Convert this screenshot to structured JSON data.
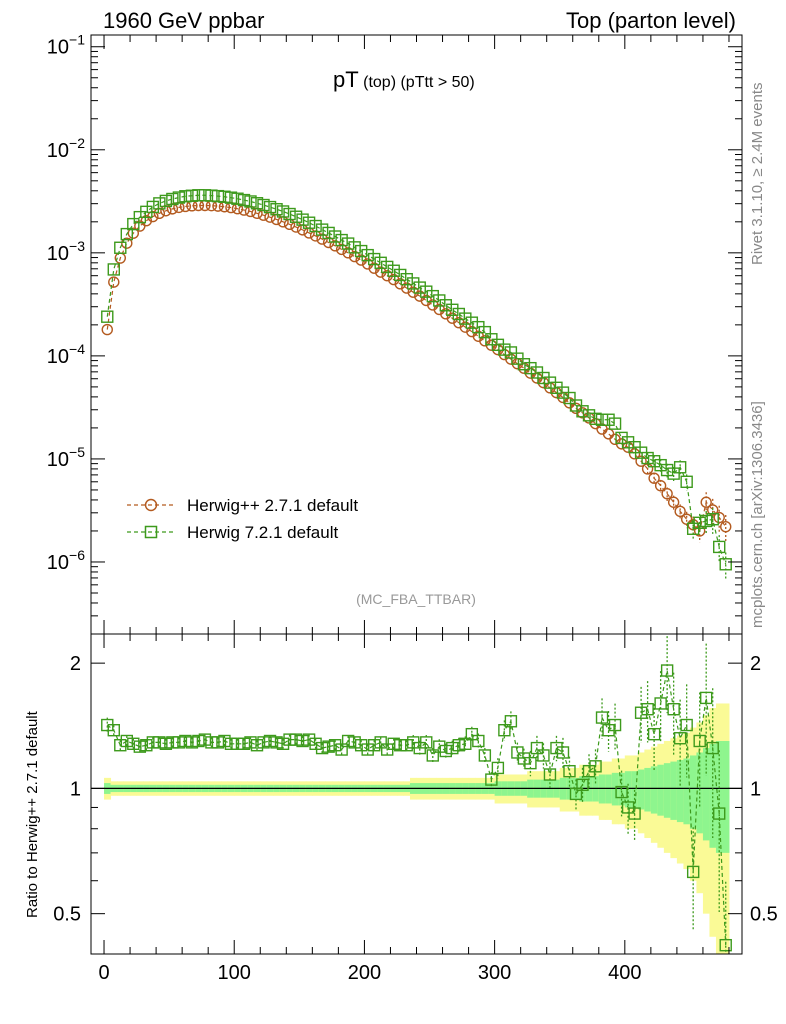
{
  "header": {
    "left": "1960 GeV ppbar",
    "right": "Top (parton level)"
  },
  "side_labels": {
    "rivet": "Rivet 3.1.10, ≥ 2.4M events",
    "mcplots": "mcplots.cern.ch [arXiv:1306.3436]"
  },
  "plot_title": {
    "main": "pT",
    "sub": " (top) (pTtt > 50)"
  },
  "analysis_tag": "(MC_FBA_TTBAR)",
  "ratio_ylabel": "Ratio to Herwig++ 2.7.1 default",
  "colors": {
    "series1": "#b35a1f",
    "series2": "#3d9a1c",
    "band_inner": "#8ef58e",
    "band_outer": "#fafa96"
  },
  "chart_data": [
    {
      "type": "scatter",
      "yscale": "log",
      "xlim": [
        -10,
        490
      ],
      "ylim": [
        2e-07,
        0.13
      ],
      "x_ticks": [
        "0",
        "100",
        "200",
        "300",
        "400"
      ],
      "y_ticks": [
        "10^-6",
        "10^-5",
        "10^-4",
        "10^-3",
        "10^-2",
        "10^-1"
      ],
      "legend_position": "lower-left",
      "x": [
        2.5,
        7.5,
        12.5,
        17.5,
        22.5,
        27.5,
        32.5,
        37.5,
        42.5,
        47.5,
        52.5,
        57.5,
        62.5,
        67.5,
        72.5,
        77.5,
        82.5,
        87.5,
        92.5,
        97.5,
        102.5,
        107.5,
        112.5,
        117.5,
        122.5,
        127.5,
        132.5,
        137.5,
        142.5,
        147.5,
        152.5,
        157.5,
        162.5,
        167.5,
        172.5,
        177.5,
        182.5,
        187.5,
        192.5,
        197.5,
        202.5,
        207.5,
        212.5,
        217.5,
        222.5,
        227.5,
        232.5,
        237.5,
        242.5,
        247.5,
        252.5,
        257.5,
        262.5,
        267.5,
        272.5,
        277.5,
        282.5,
        287.5,
        292.5,
        297.5,
        302.5,
        307.5,
        312.5,
        317.5,
        322.5,
        327.5,
        332.5,
        337.5,
        342.5,
        347.5,
        352.5,
        357.5,
        362.5,
        367.5,
        372.5,
        377.5,
        382.5,
        387.5,
        392.5,
        397.5,
        402.5,
        407.5,
        412.5,
        417.5,
        422.5,
        427.5,
        432.5,
        437.5,
        442.5,
        447.5,
        452.5,
        457.5,
        462.5,
        467.5,
        472.5,
        477.5
      ],
      "series": [
        {
          "name": "Herwig++ 2.7.1 default",
          "marker": "circle",
          "values": [
            0.00018,
            0.00052,
            0.00089,
            0.00124,
            0.00155,
            0.00182,
            0.00205,
            0.00225,
            0.00242,
            0.00256,
            0.00267,
            0.00276,
            0.00282,
            0.00286,
            0.00288,
            0.00288,
            0.00287,
            0.00284,
            0.0028,
            0.00275,
            0.00268,
            0.0026,
            0.00252,
            0.00242,
            0.00232,
            0.00222,
            0.00211,
            0.002,
            0.00189,
            0.00178,
            0.00167,
            0.00156,
            0.00146,
            0.00136,
            0.00126,
            0.00117,
            0.00108,
            0.001,
            0.00092,
            0.00085,
            0.00078,
            0.00071,
            0.00065,
            0.0006,
            0.00055,
            0.0005,
            0.000455,
            0.000415,
            0.00038,
            0.000345,
            0.000312,
            0.000282,
            0.000256,
            0.000232,
            0.00021,
            0.00019,
            0.000172,
            0.000155,
            0.00014,
            0.000127,
            0.000115,
            0.000103,
            9.3e-05,
            8.4e-05,
            7.6e-05,
            6.8e-05,
            6.1e-05,
            5.5e-05,
            4.9e-05,
            4.4e-05,
            3.95e-05,
            3.5e-05,
            3.1e-05,
            2.8e-05,
            2.5e-05,
            2.2e-05,
            1.95e-05,
            1.75e-05,
            1.55e-05,
            1.4e-05,
            1.3e-05,
            1.12e-05,
            9.5e-06,
            8e-06,
            6.5e-06,
            5.5e-06,
            4.6e-06,
            3.8e-06,
            3.1e-06,
            2.6e-06,
            2.3e-06,
            2e-06,
            3.8e-06,
            3.2e-06,
            2.7e-06,
            2.2e-06
          ],
          "errors": [
            0.03,
            0.02,
            0.02,
            0.02,
            0.02,
            0.02,
            0.02,
            0.02,
            0.02,
            0.02,
            0.02,
            0.02,
            0.02,
            0.02,
            0.02,
            0.02,
            0.02,
            0.02,
            0.02,
            0.02,
            0.02,
            0.02,
            0.02,
            0.02,
            0.02,
            0.02,
            0.02,
            0.02,
            0.02,
            0.02,
            0.02,
            0.02,
            0.02,
            0.02,
            0.02,
            0.02,
            0.02,
            0.02,
            0.02,
            0.02,
            0.02,
            0.02,
            0.02,
            0.02,
            0.02,
            0.02,
            0.02,
            0.03,
            0.03,
            0.03,
            0.03,
            0.03,
            0.03,
            0.03,
            0.03,
            0.03,
            0.03,
            0.03,
            0.03,
            0.03,
            0.04,
            0.04,
            0.04,
            0.04,
            0.04,
            0.05,
            0.05,
            0.05,
            0.05,
            0.05,
            0.06,
            0.06,
            0.06,
            0.07,
            0.07,
            0.07,
            0.08,
            0.08,
            0.09,
            0.09,
            0.1,
            0.1,
            0.11,
            0.12,
            0.13,
            0.14,
            0.15,
            0.16,
            0.17,
            0.18,
            0.2,
            0.22,
            0.25,
            0.28,
            0.3,
            0.3
          ]
        },
        {
          "name": "Herwig 7.2.1 default",
          "marker": "square",
          "values": [
            0.00024,
            0.00069,
            0.00112,
            0.00152,
            0.0019,
            0.00222,
            0.0025,
            0.00279,
            0.00302,
            0.00319,
            0.00333,
            0.00344,
            0.00354,
            0.00358,
            0.00362,
            0.00362,
            0.00359,
            0.00355,
            0.0035,
            0.00343,
            0.00335,
            0.00325,
            0.00315,
            0.00303,
            0.00291,
            0.00278,
            0.00265,
            0.00252,
            0.00238,
            0.00224,
            0.0021,
            0.00196,
            0.00182,
            0.00168,
            0.00156,
            0.00144,
            0.00133,
            0.00123,
            0.00113,
            0.00104,
            0.00095,
            0.00087,
            0.0008,
            0.00073,
            0.00067,
            0.00061,
            0.000555,
            0.000505,
            0.00046,
            0.00042,
            0.00038,
            0.000345,
            0.00031,
            0.00028,
            0.000255,
            0.00023,
            0.00021,
            0.00019,
            0.00017,
            0.000145,
            0.000128,
            0.000115,
            0.000108,
            9.4e-05,
            8.3e-05,
            7.6e-05,
            6.9e-05,
            6.1e-05,
            5.5e-05,
            4.9e-05,
            4.4e-05,
            3.9e-05,
            3.3e-05,
            2.9e-05,
            2.65e-05,
            2.45e-05,
            2.4e-05,
            2.4e-05,
            2.2e-05,
            1.6e-05,
            1.45e-05,
            1.3e-05,
            1.15e-05,
            1.02e-05,
            9.5e-06,
            8.7e-06,
            7.8e-06,
            7.2e-06,
            8.3e-06,
            6e-06,
            2.1e-06,
            2.4e-06,
            2.5e-06,
            2.6e-06,
            1.4e-06,
            9.5e-07
          ],
          "errors": [
            0.03,
            0.02,
            0.02,
            0.02,
            0.02,
            0.02,
            0.02,
            0.02,
            0.02,
            0.02,
            0.02,
            0.02,
            0.02,
            0.02,
            0.02,
            0.02,
            0.02,
            0.02,
            0.02,
            0.02,
            0.02,
            0.02,
            0.02,
            0.02,
            0.02,
            0.02,
            0.02,
            0.02,
            0.02,
            0.02,
            0.02,
            0.02,
            0.02,
            0.02,
            0.02,
            0.02,
            0.02,
            0.02,
            0.02,
            0.02,
            0.02,
            0.02,
            0.02,
            0.02,
            0.02,
            0.02,
            0.02,
            0.03,
            0.03,
            0.03,
            0.03,
            0.03,
            0.03,
            0.03,
            0.03,
            0.03,
            0.03,
            0.03,
            0.03,
            0.03,
            0.04,
            0.04,
            0.04,
            0.04,
            0.04,
            0.05,
            0.05,
            0.05,
            0.05,
            0.05,
            0.06,
            0.06,
            0.06,
            0.07,
            0.07,
            0.07,
            0.08,
            0.08,
            0.09,
            0.09,
            0.1,
            0.1,
            0.11,
            0.12,
            0.13,
            0.14,
            0.15,
            0.16,
            0.17,
            0.18,
            0.2,
            0.22,
            0.25,
            0.28,
            0.3,
            0.3
          ]
        }
      ]
    },
    {
      "type": "scatter",
      "yscale": "log",
      "xlim": [
        -10,
        490
      ],
      "ylim": [
        0.4,
        2.35
      ],
      "ylabel": "Ratio to Herwig++ 2.7.1 default",
      "x_ticks": [
        "0",
        "100",
        "200",
        "300",
        "400"
      ],
      "y_ticks": [
        "0.5",
        "1",
        "2"
      ],
      "reference_line": 1,
      "x": [
        2.5,
        7.5,
        12.5,
        17.5,
        22.5,
        27.5,
        32.5,
        37.5,
        42.5,
        47.5,
        52.5,
        57.5,
        62.5,
        67.5,
        72.5,
        77.5,
        82.5,
        87.5,
        92.5,
        97.5,
        102.5,
        107.5,
        112.5,
        117.5,
        122.5,
        127.5,
        132.5,
        137.5,
        142.5,
        147.5,
        152.5,
        157.5,
        162.5,
        167.5,
        172.5,
        177.5,
        182.5,
        187.5,
        192.5,
        197.5,
        202.5,
        207.5,
        212.5,
        217.5,
        222.5,
        227.5,
        232.5,
        237.5,
        242.5,
        247.5,
        252.5,
        257.5,
        262.5,
        267.5,
        272.5,
        277.5,
        282.5,
        287.5,
        292.5,
        297.5,
        302.5,
        307.5,
        312.5,
        317.5,
        322.5,
        327.5,
        332.5,
        337.5,
        342.5,
        347.5,
        352.5,
        357.5,
        362.5,
        367.5,
        372.5,
        377.5,
        382.5,
        387.5,
        392.5,
        397.5,
        402.5,
        407.5,
        412.5,
        417.5,
        422.5,
        427.5,
        432.5,
        437.5,
        442.5,
        447.5,
        452.5,
        457.5,
        462.5,
        467.5,
        472.5,
        477.5
      ],
      "values": [
        1.42,
        1.38,
        1.27,
        1.3,
        1.28,
        1.26,
        1.27,
        1.29,
        1.29,
        1.28,
        1.29,
        1.29,
        1.3,
        1.29,
        1.3,
        1.31,
        1.29,
        1.29,
        1.3,
        1.28,
        1.28,
        1.28,
        1.29,
        1.27,
        1.29,
        1.3,
        1.29,
        1.28,
        1.31,
        1.31,
        1.3,
        1.31,
        1.28,
        1.25,
        1.26,
        1.27,
        1.24,
        1.3,
        1.29,
        1.27,
        1.24,
        1.27,
        1.29,
        1.24,
        1.28,
        1.27,
        1.27,
        1.29,
        1.25,
        1.29,
        1.2,
        1.26,
        1.23,
        1.25,
        1.27,
        1.28,
        1.35,
        1.3,
        1.2,
        1.05,
        1.12,
        1.38,
        1.45,
        1.22,
        1.18,
        1.15,
        1.25,
        1.2,
        1.08,
        1.25,
        1.22,
        1.1,
        0.97,
        1.02,
        1.1,
        1.13,
        1.48,
        1.38,
        1.42,
        0.98,
        0.9,
        0.87,
        1.52,
        1.55,
        1.35,
        1.6,
        1.92,
        1.55,
        1.32,
        1.42,
        0.63,
        1.3,
        1.65,
        1.25,
        0.87,
        0.42
      ],
      "errors": [
        0.03,
        0.02,
        0.02,
        0.02,
        0.02,
        0.02,
        0.02,
        0.02,
        0.02,
        0.02,
        0.02,
        0.02,
        0.02,
        0.02,
        0.02,
        0.02,
        0.02,
        0.02,
        0.02,
        0.02,
        0.02,
        0.02,
        0.02,
        0.02,
        0.02,
        0.02,
        0.02,
        0.02,
        0.02,
        0.02,
        0.02,
        0.02,
        0.02,
        0.02,
        0.02,
        0.02,
        0.02,
        0.02,
        0.02,
        0.02,
        0.02,
        0.02,
        0.02,
        0.02,
        0.02,
        0.02,
        0.02,
        0.03,
        0.03,
        0.03,
        0.03,
        0.03,
        0.03,
        0.03,
        0.03,
        0.03,
        0.03,
        0.03,
        0.03,
        0.03,
        0.04,
        0.04,
        0.04,
        0.04,
        0.04,
        0.05,
        0.05,
        0.05,
        0.05,
        0.05,
        0.06,
        0.06,
        0.06,
        0.07,
        0.07,
        0.07,
        0.08,
        0.08,
        0.09,
        0.09,
        0.1,
        0.1,
        0.11,
        0.12,
        0.13,
        0.14,
        0.15,
        0.16,
        0.17,
        0.18,
        0.2,
        0.22,
        0.25,
        0.28,
        0.3,
        0.3
      ]
    }
  ]
}
